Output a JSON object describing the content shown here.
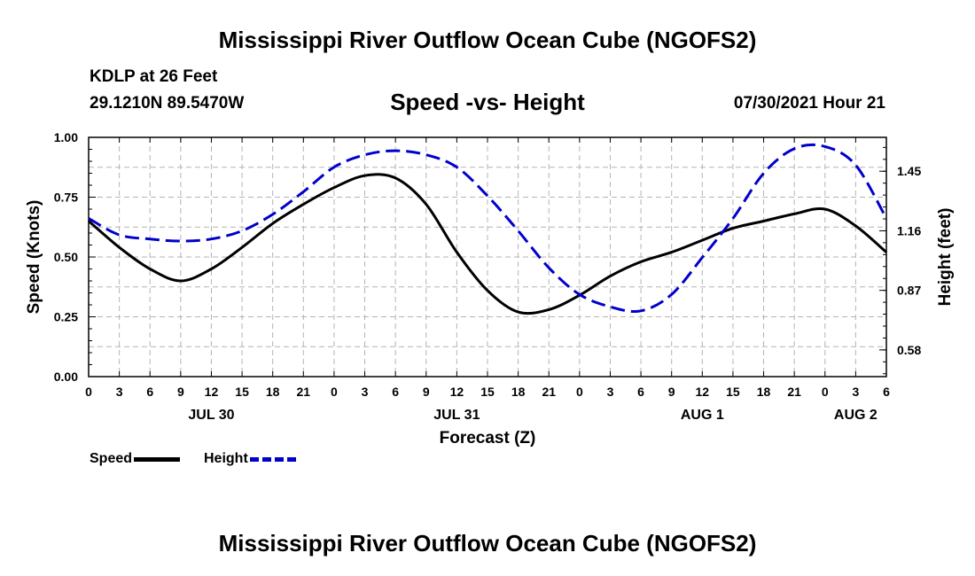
{
  "header": {
    "title": "Mississippi River Outflow Ocean Cube (NGOFS2)",
    "station": "KDLP at 26 Feet",
    "coords": "29.1210N  89.5470W",
    "subtitle": "Speed -vs- Height",
    "datetime": "07/30/2021 Hour 21"
  },
  "footer": {
    "title": "Mississippi River Outflow Ocean Cube (NGOFS2)"
  },
  "legend": {
    "speed_label": "Speed",
    "height_label": "Height"
  },
  "colors": {
    "speed": "#000000",
    "height": "#0000cc",
    "grid": "#b4b4b4"
  },
  "chart_data": {
    "type": "line",
    "title": "Speed -vs- Height",
    "xlabel": "Forecast (Z)",
    "ylabel": "Speed (Knots)",
    "ylabel_right": "Height (feet)",
    "x_unit": "hours from 07/30 00Z",
    "xlim": [
      0,
      78
    ],
    "ylim": [
      0,
      1.0
    ],
    "ylim_right": [
      0.45,
      1.615
    ],
    "x_ticks": [
      0,
      3,
      6,
      9,
      12,
      15,
      18,
      21,
      24,
      27,
      30,
      33,
      36,
      39,
      42,
      45,
      48,
      51,
      54,
      57,
      60,
      63,
      66,
      69,
      72,
      75,
      78
    ],
    "x_tick_labels": [
      "0",
      "3",
      "6",
      "9",
      "12",
      "15",
      "18",
      "21",
      "0",
      "3",
      "6",
      "9",
      "12",
      "15",
      "18",
      "21",
      "0",
      "3",
      "6",
      "9",
      "12",
      "15",
      "18",
      "21",
      "0",
      "3",
      "6"
    ],
    "date_labels": [
      {
        "x": 12,
        "label": "JUL 30"
      },
      {
        "x": 36,
        "label": "JUL 31"
      },
      {
        "x": 60,
        "label": "AUG 1"
      },
      {
        "x": 75,
        "label": "AUG 2"
      }
    ],
    "y_ticks": [
      0.0,
      0.25,
      0.5,
      0.75,
      1.0
    ],
    "y_tick_labels": [
      "0.00",
      "0.25",
      "0.50",
      "0.75",
      "1.00"
    ],
    "y_ticks_right": [
      0.58,
      0.87,
      1.16,
      1.45
    ],
    "y_tick_labels_right": [
      "0.58",
      "0.87",
      "1.16",
      "1.45"
    ],
    "series": [
      {
        "name": "Speed",
        "axis": "left",
        "style": "solid",
        "x": [
          0,
          3,
          6,
          9,
          12,
          15,
          18,
          21,
          24,
          27,
          30,
          33,
          36,
          39,
          42,
          45,
          48,
          51,
          54,
          57,
          60,
          63,
          66,
          69,
          72,
          75,
          78
        ],
        "values": [
          0.65,
          0.54,
          0.45,
          0.4,
          0.45,
          0.54,
          0.64,
          0.72,
          0.79,
          0.84,
          0.83,
          0.72,
          0.52,
          0.36,
          0.27,
          0.28,
          0.34,
          0.42,
          0.48,
          0.52,
          0.57,
          0.62,
          0.65,
          0.68,
          0.7,
          0.63,
          0.52
        ]
      },
      {
        "name": "Height",
        "axis": "right",
        "style": "dashed",
        "x": [
          0,
          3,
          6,
          9,
          12,
          15,
          18,
          21,
          24,
          27,
          30,
          33,
          36,
          39,
          42,
          45,
          48,
          51,
          54,
          57,
          60,
          63,
          66,
          69,
          72,
          75,
          78
        ],
        "values": [
          1.22,
          1.14,
          1.12,
          1.11,
          1.12,
          1.16,
          1.24,
          1.35,
          1.47,
          1.53,
          1.55,
          1.53,
          1.47,
          1.33,
          1.16,
          0.98,
          0.85,
          0.79,
          0.77,
          0.85,
          1.03,
          1.22,
          1.44,
          1.56,
          1.57,
          1.48,
          1.22
        ]
      }
    ]
  }
}
